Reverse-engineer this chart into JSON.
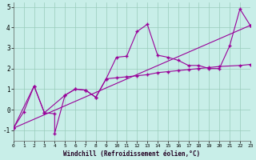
{
  "xlabel": "Windchill (Refroidissement éolien,°C)",
  "bg_color": "#c8eee8",
  "grid_color": "#99ccbb",
  "line_color": "#990099",
  "xlim": [
    0,
    23
  ],
  "ylim": [
    -1.5,
    5.2
  ],
  "xticks": [
    0,
    1,
    2,
    3,
    4,
    5,
    6,
    7,
    8,
    9,
    10,
    11,
    12,
    13,
    14,
    15,
    16,
    17,
    18,
    19,
    20,
    21,
    22,
    23
  ],
  "yticks": [
    -1,
    0,
    1,
    2,
    3,
    4,
    5
  ],
  "series1_x": [
    0,
    1,
    2,
    3,
    4,
    4,
    5,
    6,
    7,
    8,
    9,
    10,
    11,
    12,
    13,
    14,
    15,
    16,
    17,
    18,
    19,
    20,
    21,
    22,
    23
  ],
  "series1_y": [
    -0.9,
    -0.1,
    1.15,
    -0.15,
    -0.2,
    -1.15,
    0.7,
    1.0,
    0.95,
    0.6,
    1.5,
    2.55,
    2.6,
    3.8,
    4.15,
    2.65,
    2.55,
    2.4,
    2.15,
    2.15,
    2.0,
    2.0,
    3.1,
    4.9,
    4.1
  ],
  "series2_x": [
    0,
    2,
    3,
    5,
    6,
    7,
    8,
    9,
    10,
    11,
    12,
    13,
    14,
    15,
    16,
    17,
    18,
    19,
    20,
    22,
    23
  ],
  "series2_y": [
    -0.9,
    1.15,
    -0.15,
    0.7,
    1.0,
    0.95,
    0.6,
    1.5,
    1.55,
    1.6,
    1.65,
    1.7,
    1.8,
    1.85,
    1.9,
    1.95,
    2.0,
    2.05,
    2.1,
    2.15,
    2.2
  ],
  "series3_x": [
    0,
    23
  ],
  "series3_y": [
    -0.9,
    4.1
  ],
  "markersize": 2.5,
  "linewidth": 0.8
}
